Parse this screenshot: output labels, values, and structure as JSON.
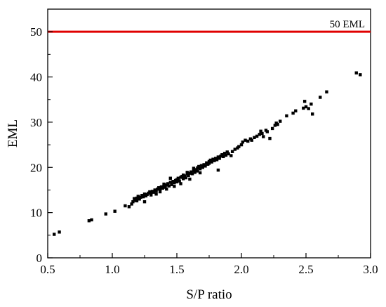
{
  "chart_data": {
    "type": "scatter",
    "title": "",
    "xlabel": "S/P ratio",
    "ylabel": "EML",
    "xlim": [
      0.5,
      3.0
    ],
    "ylim": [
      0,
      55
    ],
    "xticks": [
      "0.5",
      "1.0",
      "1.5",
      "2.0",
      "2.5",
      "3.0"
    ],
    "yticks": [
      "0",
      "10",
      "20",
      "30",
      "40",
      "50"
    ],
    "grid": false,
    "legend": "none",
    "marker_color": "#000000",
    "reference_line": {
      "y": 50,
      "label": "50 EML",
      "color": "#e00000"
    },
    "series": [
      {
        "points": [
          [
            0.55,
            5.2
          ],
          [
            0.59,
            5.7
          ],
          [
            0.82,
            8.2
          ],
          [
            0.84,
            8.4
          ],
          [
            0.95,
            9.7
          ],
          [
            1.02,
            10.3
          ],
          [
            1.1,
            11.5
          ],
          [
            1.13,
            11.3
          ],
          [
            1.15,
            11.9
          ],
          [
            1.16,
            12.4
          ],
          [
            1.17,
            13.1
          ],
          [
            1.18,
            12.7
          ],
          [
            1.19,
            12.6
          ],
          [
            1.19,
            13.2
          ],
          [
            1.2,
            13.6
          ],
          [
            1.21,
            13.0
          ],
          [
            1.22,
            13.4
          ],
          [
            1.23,
            13.8
          ],
          [
            1.24,
            13.5
          ],
          [
            1.25,
            12.4
          ],
          [
            1.25,
            14.1
          ],
          [
            1.26,
            13.7
          ],
          [
            1.27,
            14.0
          ],
          [
            1.28,
            14.3
          ],
          [
            1.29,
            14.6
          ],
          [
            1.3,
            14.2
          ],
          [
            1.3,
            13.9
          ],
          [
            1.31,
            14.7
          ],
          [
            1.32,
            14.5
          ],
          [
            1.33,
            15.0
          ],
          [
            1.34,
            14.8
          ],
          [
            1.34,
            14.1
          ],
          [
            1.35,
            15.2
          ],
          [
            1.36,
            15.5
          ],
          [
            1.37,
            15.1
          ],
          [
            1.37,
            14.6
          ],
          [
            1.38,
            15.7
          ],
          [
            1.39,
            15.4
          ],
          [
            1.4,
            15.9
          ],
          [
            1.4,
            16.3
          ],
          [
            1.41,
            15.6
          ],
          [
            1.42,
            16.1
          ],
          [
            1.42,
            15.2
          ],
          [
            1.43,
            16.4
          ],
          [
            1.44,
            15.9
          ],
          [
            1.45,
            16.7
          ],
          [
            1.45,
            17.6
          ],
          [
            1.46,
            16.2
          ],
          [
            1.47,
            16.9
          ],
          [
            1.48,
            16.6
          ],
          [
            1.48,
            15.8
          ],
          [
            1.49,
            17.1
          ],
          [
            1.5,
            17.3
          ],
          [
            1.5,
            16.8
          ],
          [
            1.51,
            17.6
          ],
          [
            1.52,
            17.0
          ],
          [
            1.53,
            17.8
          ],
          [
            1.53,
            16.4
          ],
          [
            1.54,
            18.0
          ],
          [
            1.55,
            17.5
          ],
          [
            1.55,
            18.3
          ],
          [
            1.56,
            18.1
          ],
          [
            1.57,
            17.7
          ],
          [
            1.58,
            18.5
          ],
          [
            1.58,
            18.9
          ],
          [
            1.59,
            18.2
          ],
          [
            1.6,
            18.7
          ],
          [
            1.6,
            17.4
          ],
          [
            1.61,
            19.0
          ],
          [
            1.62,
            18.6
          ],
          [
            1.63,
            19.3
          ],
          [
            1.63,
            19.8
          ],
          [
            1.64,
            18.9
          ],
          [
            1.65,
            19.5
          ],
          [
            1.66,
            19.9
          ],
          [
            1.66,
            19.2
          ],
          [
            1.67,
            20.2
          ],
          [
            1.68,
            19.7
          ],
          [
            1.68,
            18.8
          ],
          [
            1.69,
            20.4
          ],
          [
            1.7,
            20.0
          ],
          [
            1.71,
            20.6
          ],
          [
            1.72,
            20.3
          ],
          [
            1.73,
            21.0
          ],
          [
            1.74,
            20.7
          ],
          [
            1.75,
            21.3
          ],
          [
            1.75,
            20.9
          ],
          [
            1.76,
            21.6
          ],
          [
            1.77,
            21.2
          ],
          [
            1.78,
            21.8
          ],
          [
            1.79,
            21.5
          ],
          [
            1.8,
            22.0
          ],
          [
            1.81,
            21.7
          ],
          [
            1.82,
            22.3
          ],
          [
            1.82,
            19.4
          ],
          [
            1.83,
            22.0
          ],
          [
            1.84,
            22.5
          ],
          [
            1.85,
            22.8
          ],
          [
            1.86,
            22.4
          ],
          [
            1.87,
            23.1
          ],
          [
            1.88,
            22.7
          ],
          [
            1.89,
            23.4
          ],
          [
            1.9,
            23.0
          ],
          [
            1.92,
            22.6
          ],
          [
            1.93,
            23.5
          ],
          [
            1.95,
            24.0
          ],
          [
            1.97,
            24.3
          ],
          [
            1.98,
            24.6
          ],
          [
            2.0,
            25.0
          ],
          [
            2.01,
            25.6
          ],
          [
            2.03,
            26.0
          ],
          [
            2.05,
            25.8
          ],
          [
            2.07,
            26.3
          ],
          [
            2.08,
            26.0
          ],
          [
            2.1,
            26.6
          ],
          [
            2.12,
            26.9
          ],
          [
            2.14,
            27.3
          ],
          [
            2.15,
            28.0
          ],
          [
            2.16,
            27.5
          ],
          [
            2.17,
            26.8
          ],
          [
            2.19,
            28.2
          ],
          [
            2.2,
            27.9
          ],
          [
            2.22,
            26.4
          ],
          [
            2.24,
            28.6
          ],
          [
            2.26,
            29.3
          ],
          [
            2.27,
            29.8
          ],
          [
            2.28,
            29.5
          ],
          [
            2.3,
            30.2
          ],
          [
            2.35,
            31.4
          ],
          [
            2.4,
            32.0
          ],
          [
            2.42,
            32.5
          ],
          [
            2.48,
            33.1
          ],
          [
            2.49,
            34.6
          ],
          [
            2.5,
            33.4
          ],
          [
            2.52,
            33.0
          ],
          [
            2.54,
            34.0
          ],
          [
            2.55,
            31.8
          ],
          [
            2.61,
            35.5
          ],
          [
            2.66,
            36.7
          ],
          [
            2.89,
            40.9
          ],
          [
            2.92,
            40.5
          ]
        ]
      }
    ]
  }
}
